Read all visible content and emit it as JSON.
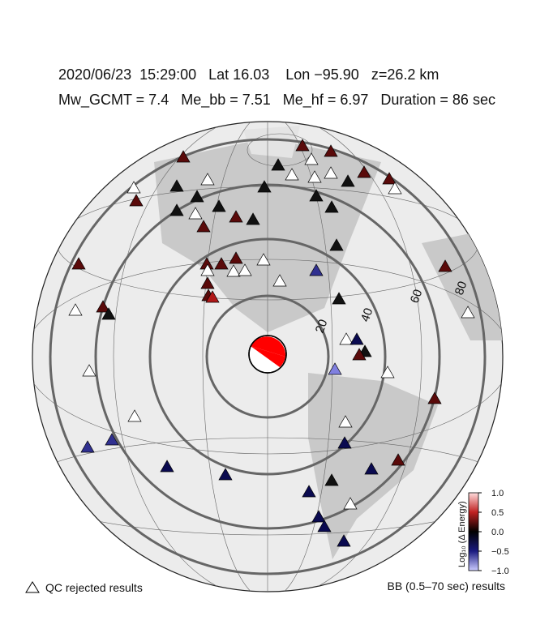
{
  "header": {
    "line1": "2020/06/23  15:29:00   Lat 16.03    Lon −95.90   z=26.2 km",
    "line2": "Mw_GCMT = 7.4   Me_bb = 7.51   Me_hf = 6.97   Duration = 86 sec"
  },
  "distance_rings": {
    "labels": [
      "20",
      "40",
      "60",
      "80"
    ]
  },
  "colorbar": {
    "title": "Log₁₀ (Δ Energy)",
    "ticks": [
      {
        "value": 1.0,
        "label": "1.0"
      },
      {
        "value": 0.5,
        "label": "0.5"
      },
      {
        "value": 0.0,
        "label": "0.0"
      },
      {
        "value": -0.5,
        "label": "−0.5"
      },
      {
        "value": -1.0,
        "label": "−1.0"
      }
    ],
    "range": [
      -1.0,
      1.0
    ]
  },
  "legend": {
    "rejected": "QC rejected results",
    "results": "BB (0.5–70 sec) results"
  }
}
